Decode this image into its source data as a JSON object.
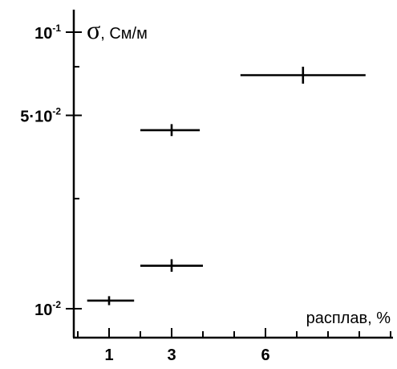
{
  "chart_data": {
    "type": "scatter",
    "title": "",
    "xlabel": "расплав, %",
    "ylabel_symbol": "σ",
    "ylabel_unit": ", См/м",
    "yscale": "log",
    "xlim": [
      0,
      10
    ],
    "ylim": [
      0.01,
      0.1
    ],
    "x_ticks": [
      1,
      3,
      6
    ],
    "x_tick_labels": [
      "1",
      "3",
      "6"
    ],
    "y_ticks": [
      {
        "value": 0.1,
        "mantissa": "",
        "base": "10",
        "exp": "-1"
      },
      {
        "value": 0.05,
        "mantissa": "5·",
        "base": "10",
        "exp": "-2"
      },
      {
        "value": 0.01,
        "mantissa": "",
        "base": "10",
        "exp": "-2"
      }
    ],
    "points": [
      {
        "x": 1.0,
        "x_err": [
          0.3,
          1.8
        ],
        "y": 0.0107,
        "y_err": [
          0.0103,
          0.0111
        ]
      },
      {
        "x": 3.0,
        "x_err": [
          2.0,
          4.0
        ],
        "y": 0.0143,
        "y_err": [
          0.0136,
          0.0151
        ]
      },
      {
        "x": 3.0,
        "x_err": [
          2.0,
          3.9
        ],
        "y": 0.0442,
        "y_err": [
          0.0421,
          0.0465
        ]
      },
      {
        "x": 7.2,
        "x_err": [
          5.2,
          9.2
        ],
        "y": 0.0699,
        "y_err": [
          0.0651,
          0.075
        ]
      }
    ],
    "grid": false,
    "legend": "none"
  }
}
